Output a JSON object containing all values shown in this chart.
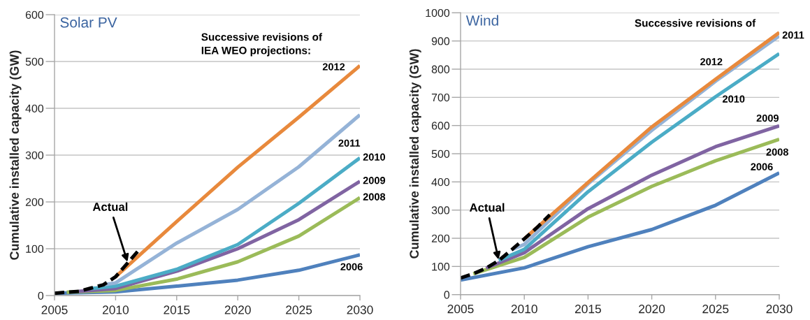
{
  "chart_data": [
    {
      "type": "line",
      "title": "Solar PV",
      "ylabel": "Cumulative installed capacity (GW)",
      "annotations": [
        "Successive revisions of\nIEA WEO projections:",
        {
          "text": "Actual",
          "x": 2011,
          "y": 70
        }
      ],
      "xlim": [
        2005,
        2030
      ],
      "xticks": [
        2005,
        2010,
        2015,
        2020,
        2025,
        2030
      ],
      "ylim": [
        0,
        600
      ],
      "yticks": [
        0,
        100,
        200,
        300,
        400,
        500,
        600
      ],
      "grid": "y",
      "series": [
        {
          "name": "2006",
          "color": "#4f81bd",
          "x": [
            2005,
            2010,
            2015,
            2020,
            2025,
            2030
          ],
          "values": [
            5,
            8,
            20,
            33,
            54,
            87
          ]
        },
        {
          "name": "2008",
          "color": "#9bbb59",
          "x": [
            2006,
            2010,
            2015,
            2020,
            2025,
            2030
          ],
          "values": [
            7,
            11,
            35,
            72,
            127,
            209
          ]
        },
        {
          "name": "2009",
          "color": "#8064a2",
          "x": [
            2007,
            2010,
            2015,
            2020,
            2025,
            2030
          ],
          "values": [
            9,
            15,
            52,
            100,
            162,
            244
          ]
        },
        {
          "name": "2010",
          "color": "#4bacc6",
          "x": [
            2008,
            2010,
            2015,
            2020,
            2025,
            2030
          ],
          "values": [
            15,
            20,
            56,
            109,
            197,
            294
          ]
        },
        {
          "name": "2011",
          "color": "#95b3d7",
          "x": [
            2009,
            2010,
            2015,
            2020,
            2025,
            2030
          ],
          "values": [
            23,
            27,
            112,
            184,
            275,
            386
          ]
        },
        {
          "name": "2012",
          "color": "#e8893c",
          "x": [
            2010,
            2015,
            2020,
            2025,
            2030
          ],
          "values": [
            40,
            158,
            274,
            381,
            491
          ]
        },
        {
          "color": "#000000",
          "line_style": "dashed",
          "x": [
            2005,
            2006,
            2007,
            2008,
            2009,
            2010,
            2011,
            2012
          ],
          "values": [
            5,
            7,
            9,
            16,
            23,
            40,
            70,
            100
          ]
        }
      ]
    },
    {
      "type": "line",
      "title": "Wind",
      "ylabel": "Cumulative installed capacity (GW)",
      "annotations": [
        "Successive revisions of",
        {
          "text": "Actual",
          "x": 2008,
          "y": 121
        }
      ],
      "xlim": [
        2005,
        2030
      ],
      "xticks": [
        2005,
        2010,
        2015,
        2020,
        2025,
        2030
      ],
      "ylim": [
        0,
        1000
      ],
      "yticks": [
        0,
        100,
        200,
        300,
        400,
        500,
        600,
        700,
        800,
        900,
        1000
      ],
      "grid": "y",
      "series": [
        {
          "name": "2006",
          "color": "#4f81bd",
          "x": [
            2005,
            2010,
            2015,
            2020,
            2025,
            2030
          ],
          "values": [
            52,
            95,
            170,
            231,
            317,
            432
          ]
        },
        {
          "name": "2008",
          "color": "#9bbb59",
          "x": [
            2006,
            2010,
            2015,
            2020,
            2025,
            2030
          ],
          "values": [
            74,
            132,
            275,
            384,
            475,
            551
          ]
        },
        {
          "name": "2009",
          "color": "#8064a2",
          "x": [
            2007,
            2010,
            2015,
            2020,
            2025,
            2030
          ],
          "values": [
            94,
            149,
            305,
            424,
            525,
            599
          ]
        },
        {
          "name": "2010",
          "color": "#4bacc6",
          "x": [
            2008,
            2010,
            2015,
            2020,
            2025,
            2030
          ],
          "values": [
            121,
            161,
            365,
            541,
            702,
            855
          ]
        },
        {
          "name": "2011",
          "color": "#95b3d7",
          "x": [
            2009,
            2010,
            2015,
            2020,
            2025,
            2030
          ],
          "values": [
            159,
            178,
            393,
            583,
            757,
            918
          ]
        },
        {
          "name": "2012",
          "color": "#e8893c",
          "x": [
            2010,
            2015,
            2020,
            2025,
            2030
          ],
          "values": [
            198,
            398,
            595,
            764,
            930
          ]
        },
        {
          "color": "#000000",
          "line_style": "dashed",
          "x": [
            2005,
            2006,
            2007,
            2008,
            2009,
            2010,
            2011,
            2012
          ],
          "values": [
            59,
            74,
            94,
            121,
            159,
            198,
            238,
            283
          ]
        }
      ]
    }
  ]
}
